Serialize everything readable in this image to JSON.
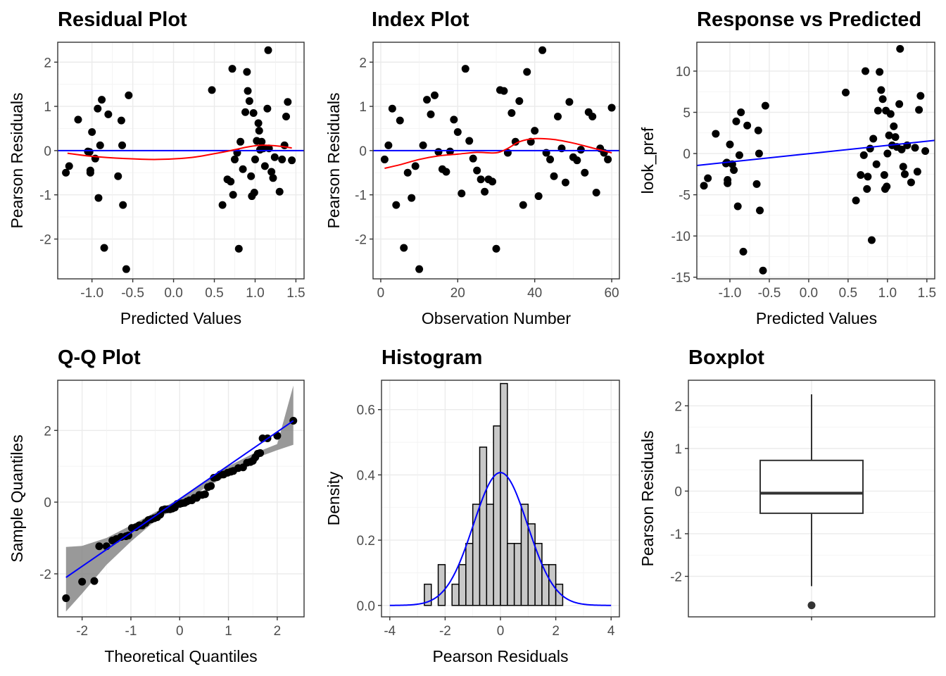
{
  "chart_data": [
    {
      "type": "scatter",
      "title": "Residual Plot",
      "xlabel": "Predicted Values",
      "ylabel": "Pearson Residuals",
      "xlim": [
        -1.42,
        1.6
      ],
      "ylim": [
        -2.9,
        2.45
      ],
      "xticks": [
        -1.0,
        -0.5,
        0.0,
        0.5,
        1.0,
        1.5
      ],
      "xtick_labels": [
        "-1.0",
        "-0.5",
        "0.0",
        "0.5",
        "1.0",
        "1.5"
      ],
      "yticks": [
        -2,
        -1,
        0,
        1,
        2
      ],
      "ytick_labels": [
        "-2",
        "-1",
        "0",
        "1",
        "2"
      ],
      "grid": true,
      "points": [
        [
          -1.32,
          -0.5
        ],
        [
          -1.28,
          -0.35
        ],
        [
          -1.17,
          0.7
        ],
        [
          -1.05,
          -0.02
        ],
        [
          -1.03,
          -0.03
        ],
        [
          -1.02,
          -0.45
        ],
        [
          -1.02,
          -0.5
        ],
        [
          -1.0,
          0.42
        ],
        [
          -0.96,
          -0.18
        ],
        [
          -0.93,
          0.95
        ],
        [
          -0.92,
          -1.07
        ],
        [
          -0.9,
          0.12
        ],
        [
          -0.88,
          1.15
        ],
        [
          -0.85,
          -2.2
        ],
        [
          -0.8,
          0.82
        ],
        [
          -0.68,
          -0.58
        ],
        [
          -0.64,
          0.68
        ],
        [
          -0.63,
          0.12
        ],
        [
          -0.62,
          -1.23
        ],
        [
          -0.58,
          -2.68
        ],
        [
          -0.55,
          1.25
        ],
        [
          0.47,
          1.37
        ],
        [
          0.6,
          -1.23
        ],
        [
          0.66,
          -0.65
        ],
        [
          0.7,
          -0.7
        ],
        [
          0.72,
          1.85
        ],
        [
          0.73,
          -1.0
        ],
        [
          0.75,
          -0.2
        ],
        [
          0.78,
          -0.05
        ],
        [
          0.8,
          -2.22
        ],
        [
          0.82,
          0.2
        ],
        [
          0.85,
          -0.42
        ],
        [
          0.88,
          0.87
        ],
        [
          0.9,
          1.78
        ],
        [
          0.91,
          1.35
        ],
        [
          0.93,
          1.12
        ],
        [
          0.95,
          -0.58
        ],
        [
          0.96,
          -1.03
        ],
        [
          0.98,
          0.85
        ],
        [
          0.99,
          -0.95
        ],
        [
          1.0,
          -0.2
        ],
        [
          1.02,
          0.22
        ],
        [
          1.04,
          0.62
        ],
        [
          1.05,
          0.45
        ],
        [
          1.06,
          0.02
        ],
        [
          1.08,
          0.2
        ],
        [
          1.1,
          0.05
        ],
        [
          1.12,
          -0.35
        ],
        [
          1.15,
          0.95
        ],
        [
          1.16,
          2.27
        ],
        [
          1.17,
          0.05
        ],
        [
          1.2,
          -0.48
        ],
        [
          1.22,
          -0.62
        ],
        [
          1.24,
          -0.15
        ],
        [
          1.3,
          -0.93
        ],
        [
          1.33,
          -0.2
        ],
        [
          1.36,
          0.12
        ],
        [
          1.38,
          0.77
        ],
        [
          1.4,
          1.1
        ],
        [
          1.45,
          -0.22
        ]
      ],
      "zero_line": 0,
      "smooth_curve": [
        [
          -1.3,
          -0.06
        ],
        [
          -1.0,
          -0.13
        ],
        [
          -0.6,
          -0.18
        ],
        [
          -0.2,
          -0.2
        ],
        [
          0.2,
          -0.16
        ],
        [
          0.5,
          -0.07
        ],
        [
          0.7,
          0.0
        ],
        [
          0.9,
          0.08
        ],
        [
          1.05,
          0.12
        ],
        [
          1.15,
          0.12
        ],
        [
          1.3,
          0.1
        ],
        [
          1.45,
          0.06
        ]
      ]
    },
    {
      "type": "scatter",
      "title": "Index Plot",
      "xlabel": "Observation Number",
      "ylabel": "Pearson Residuals",
      "xlim": [
        -2,
        62
      ],
      "ylim": [
        -2.9,
        2.45
      ],
      "xticks": [
        0,
        20,
        40,
        60
      ],
      "xtick_labels": [
        "0",
        "20",
        "40",
        "60"
      ],
      "yticks": [
        -2,
        -1,
        0,
        1,
        2
      ],
      "ytick_labels": [
        "-2",
        "-1",
        "0",
        "1",
        "2"
      ],
      "grid": true,
      "points": [
        [
          1,
          -0.2
        ],
        [
          2,
          0.12
        ],
        [
          3,
          0.95
        ],
        [
          4,
          -1.23
        ],
        [
          5,
          0.68
        ],
        [
          6,
          -2.2
        ],
        [
          7,
          -0.5
        ],
        [
          8,
          -1.07
        ],
        [
          9,
          -0.35
        ],
        [
          10,
          -2.68
        ],
        [
          11,
          0.12
        ],
        [
          12,
          1.15
        ],
        [
          13,
          0.82
        ],
        [
          14,
          1.25
        ],
        [
          15,
          -0.03
        ],
        [
          16,
          -0.42
        ],
        [
          17,
          -0.48
        ],
        [
          18,
          -0.02
        ],
        [
          19,
          0.7
        ],
        [
          20,
          0.42
        ],
        [
          21,
          -0.97
        ],
        [
          22,
          1.85
        ],
        [
          23,
          0.22
        ],
        [
          24,
          -0.18
        ],
        [
          25,
          -0.45
        ],
        [
          26,
          -0.65
        ],
        [
          27,
          -0.93
        ],
        [
          28,
          -0.65
        ],
        [
          29,
          -0.7
        ],
        [
          30,
          -2.22
        ],
        [
          31,
          1.37
        ],
        [
          32,
          1.35
        ],
        [
          33,
          -0.05
        ],
        [
          34,
          0.85
        ],
        [
          35,
          0.2
        ],
        [
          36,
          1.12
        ],
        [
          37,
          -1.23
        ],
        [
          38,
          1.78
        ],
        [
          39,
          0.2
        ],
        [
          40,
          0.45
        ],
        [
          41,
          -1.03
        ],
        [
          42,
          2.27
        ],
        [
          43,
          -0.05
        ],
        [
          44,
          -0.2
        ],
        [
          45,
          -0.58
        ],
        [
          46,
          0.77
        ],
        [
          47,
          0.05
        ],
        [
          48,
          -0.72
        ],
        [
          49,
          1.1
        ],
        [
          50,
          -0.15
        ],
        [
          51,
          -0.22
        ],
        [
          52,
          0.02
        ],
        [
          53,
          -0.5
        ],
        [
          54,
          0.87
        ],
        [
          55,
          0.77
        ],
        [
          56,
          -0.95
        ],
        [
          57,
          0.05
        ],
        [
          58,
          -0.05
        ],
        [
          59,
          -0.2
        ],
        [
          60,
          0.97
        ]
      ],
      "zero_line": 0,
      "smooth_curve": [
        [
          1,
          -0.4
        ],
        [
          5,
          -0.32
        ],
        [
          10,
          -0.2
        ],
        [
          15,
          -0.12
        ],
        [
          20,
          -0.08
        ],
        [
          25,
          -0.04
        ],
        [
          30,
          -0.05
        ],
        [
          33,
          0.05
        ],
        [
          36,
          0.2
        ],
        [
          40,
          0.27
        ],
        [
          45,
          0.25
        ],
        [
          50,
          0.17
        ],
        [
          55,
          0.06
        ],
        [
          60,
          -0.05
        ]
      ]
    },
    {
      "type": "scatter",
      "title": "Response vs Predicted",
      "xlabel": "Predicted Values",
      "ylabel": "look_pref",
      "xlim": [
        -1.42,
        1.6
      ],
      "ylim": [
        -15.2,
        13.5
      ],
      "xticks": [
        -1.0,
        -0.5,
        0.0,
        0.5,
        1.0,
        1.5
      ],
      "xtick_labels": [
        "-1.0",
        "-0.5",
        "0.0",
        "0.5",
        "1.0",
        "1.5"
      ],
      "yticks": [
        -15,
        -10,
        -5,
        0,
        5,
        10
      ],
      "ytick_labels": [
        "-15",
        "-10",
        "-5",
        "0",
        "5",
        "10"
      ],
      "grid": true,
      "points": [
        [
          -1.33,
          -3.9
        ],
        [
          -1.28,
          -3.0
        ],
        [
          -1.18,
          2.4
        ],
        [
          -1.05,
          -1.2
        ],
        [
          -1.04,
          -1.1
        ],
        [
          -1.03,
          -3.2
        ],
        [
          -1.03,
          -3.6
        ],
        [
          -1.0,
          1.1
        ],
        [
          -0.97,
          -1.3
        ],
        [
          -0.95,
          -2.0
        ],
        [
          -0.92,
          3.9
        ],
        [
          -0.9,
          -6.4
        ],
        [
          -0.88,
          -0.2
        ],
        [
          -0.86,
          5.0
        ],
        [
          -0.83,
          -11.9
        ],
        [
          -0.78,
          3.4
        ],
        [
          -0.66,
          -3.7
        ],
        [
          -0.64,
          2.8
        ],
        [
          -0.63,
          0.0
        ],
        [
          -0.62,
          -6.9
        ],
        [
          -0.58,
          -14.2
        ],
        [
          -0.55,
          5.8
        ],
        [
          0.47,
          7.4
        ],
        [
          0.6,
          -5.7
        ],
        [
          0.66,
          -2.6
        ],
        [
          0.7,
          -0.2
        ],
        [
          0.72,
          10.0
        ],
        [
          0.74,
          -4.3
        ],
        [
          0.75,
          -2.8
        ],
        [
          0.78,
          0.6
        ],
        [
          0.8,
          -10.5
        ],
        [
          0.82,
          1.8
        ],
        [
          0.86,
          -1.3
        ],
        [
          0.88,
          5.2
        ],
        [
          0.9,
          9.9
        ],
        [
          0.92,
          7.7
        ],
        [
          0.94,
          6.6
        ],
        [
          0.96,
          -2.6
        ],
        [
          0.97,
          -4.3
        ],
        [
          0.98,
          5.2
        ],
        [
          0.99,
          -4.0
        ],
        [
          1.0,
          0.0
        ],
        [
          1.02,
          2.2
        ],
        [
          1.04,
          4.8
        ],
        [
          1.06,
          1.0
        ],
        [
          1.08,
          3.3
        ],
        [
          1.1,
          2.0
        ],
        [
          1.12,
          0.8
        ],
        [
          1.15,
          6.0
        ],
        [
          1.16,
          12.7
        ],
        [
          1.18,
          0.5
        ],
        [
          1.2,
          -1.6
        ],
        [
          1.22,
          -2.5
        ],
        [
          1.25,
          1.0
        ],
        [
          1.3,
          -3.5
        ],
        [
          1.35,
          0.7
        ],
        [
          1.38,
          -2.2
        ],
        [
          1.4,
          5.3
        ],
        [
          1.42,
          7.0
        ],
        [
          1.48,
          0.3
        ]
      ],
      "fit_line": [
        [
          -1.42,
          -1.45
        ],
        [
          1.6,
          1.6
        ]
      ]
    },
    {
      "type": "scatter",
      "title": "Q-Q Plot",
      "xlabel": "Theoretical Quantiles",
      "ylabel": "Sample Quantiles",
      "xlim": [
        -2.5,
        2.55
      ],
      "ylim": [
        -3.2,
        3.4
      ],
      "xticks": [
        -2,
        -1,
        0,
        1,
        2
      ],
      "xtick_labels": [
        "-2",
        "-1",
        "0",
        "1",
        "2"
      ],
      "yticks": [
        -2,
        0,
        2
      ],
      "ytick_labels": [
        "-2",
        "0",
        "2"
      ],
      "grid": true,
      "ref_line": [
        [
          -2.33,
          -2.1
        ],
        [
          2.33,
          2.27
        ]
      ],
      "confidence_band": {
        "x": [
          -2.33,
          -2.0,
          -1.5,
          -1.0,
          -0.5,
          0.0,
          0.5,
          1.0,
          1.5,
          2.0,
          2.33
        ],
        "upper": [
          -1.25,
          -1.22,
          -1.0,
          -0.65,
          -0.28,
          0.1,
          0.58,
          1.0,
          1.35,
          1.62,
          3.25
        ],
        "lower": [
          -3.05,
          -2.55,
          -1.75,
          -1.1,
          -0.52,
          -0.08,
          0.38,
          0.75,
          1.2,
          1.45,
          1.6
        ]
      },
      "points": [
        [
          -2.33,
          -2.68
        ],
        [
          -2.0,
          -2.22
        ],
        [
          -1.75,
          -2.2
        ],
        [
          -1.65,
          -1.23
        ],
        [
          -1.5,
          -1.23
        ],
        [
          -1.38,
          -1.07
        ],
        [
          -1.3,
          -1.03
        ],
        [
          -1.2,
          -0.97
        ],
        [
          -1.1,
          -0.95
        ],
        [
          -1.05,
          -0.93
        ],
        [
          -0.98,
          -0.72
        ],
        [
          -0.9,
          -0.7
        ],
        [
          -0.83,
          -0.65
        ],
        [
          -0.77,
          -0.65
        ],
        [
          -0.7,
          -0.58
        ],
        [
          -0.64,
          -0.5
        ],
        [
          -0.58,
          -0.48
        ],
        [
          -0.52,
          -0.45
        ],
        [
          -0.46,
          -0.42
        ],
        [
          -0.4,
          -0.35
        ],
        [
          -0.35,
          -0.22
        ],
        [
          -0.3,
          -0.2
        ],
        [
          -0.25,
          -0.2
        ],
        [
          -0.2,
          -0.2
        ],
        [
          -0.15,
          -0.18
        ],
        [
          -0.1,
          -0.15
        ],
        [
          -0.05,
          -0.05
        ],
        [
          0.0,
          -0.05
        ],
        [
          0.05,
          -0.03
        ],
        [
          0.1,
          -0.02
        ],
        [
          0.15,
          0.02
        ],
        [
          0.2,
          0.05
        ],
        [
          0.25,
          0.05
        ],
        [
          0.3,
          0.12
        ],
        [
          0.35,
          0.12
        ],
        [
          0.4,
          0.2
        ],
        [
          0.46,
          0.2
        ],
        [
          0.52,
          0.22
        ],
        [
          0.58,
          0.42
        ],
        [
          0.64,
          0.45
        ],
        [
          0.7,
          0.68
        ],
        [
          0.77,
          0.7
        ],
        [
          0.83,
          0.77
        ],
        [
          0.9,
          0.77
        ],
        [
          0.98,
          0.82
        ],
        [
          1.05,
          0.85
        ],
        [
          1.1,
          0.87
        ],
        [
          1.2,
          0.95
        ],
        [
          1.3,
          0.97
        ],
        [
          1.38,
          1.1
        ],
        [
          1.45,
          1.12
        ],
        [
          1.5,
          1.15
        ],
        [
          1.55,
          1.25
        ],
        [
          1.6,
          1.35
        ],
        [
          1.65,
          1.37
        ],
        [
          1.7,
          1.78
        ],
        [
          1.8,
          1.78
        ],
        [
          2.0,
          1.85
        ],
        [
          2.33,
          2.27
        ]
      ]
    },
    {
      "type": "bar",
      "title": "Histogram",
      "xlabel": "Pearson Residuals",
      "ylabel": "Density",
      "xlim": [
        -4.3,
        4.3
      ],
      "ylim": [
        -0.035,
        0.69
      ],
      "xticks": [
        -4,
        -2,
        0,
        2,
        4
      ],
      "xtick_labels": [
        "-4",
        "-2",
        "0",
        "2",
        "4"
      ],
      "yticks": [
        0.0,
        0.2,
        0.4,
        0.6
      ],
      "ytick_labels": [
        "0.0",
        "0.2",
        "0.4",
        "0.6"
      ],
      "grid": true,
      "bin_width": 0.25,
      "bin_starts": [
        -2.75,
        -2.5,
        -2.25,
        -2.0,
        -1.75,
        -1.5,
        -1.25,
        -1.0,
        -0.75,
        -0.5,
        -0.25,
        0.0,
        0.25,
        0.5,
        0.75,
        1.0,
        1.25,
        1.5,
        1.75,
        2.0
      ],
      "densities": [
        0.065,
        0.0,
        0.125,
        0.0,
        0.065,
        0.125,
        0.19,
        0.31,
        0.485,
        0.31,
        0.55,
        0.68,
        0.19,
        0.19,
        0.31,
        0.25,
        0.19,
        0.125,
        0.125,
        0.065
      ],
      "density_curve": {
        "mean": 0.0,
        "sd": 0.98,
        "x_range": [
          -4,
          4
        ]
      }
    },
    {
      "type": "boxplot",
      "title": "Boxplot",
      "xlabel": "",
      "ylabel": "Pearson Residuals",
      "ylim": [
        -2.95,
        2.6
      ],
      "yticks": [
        -2,
        -1,
        0,
        1,
        2
      ],
      "ytick_labels": [
        "-2",
        "-1",
        "0",
        "1",
        "2"
      ],
      "grid": true,
      "min": -2.23,
      "q1": -0.52,
      "median": -0.05,
      "q3": 0.72,
      "max": 2.27,
      "outliers": [
        -2.68
      ]
    }
  ]
}
